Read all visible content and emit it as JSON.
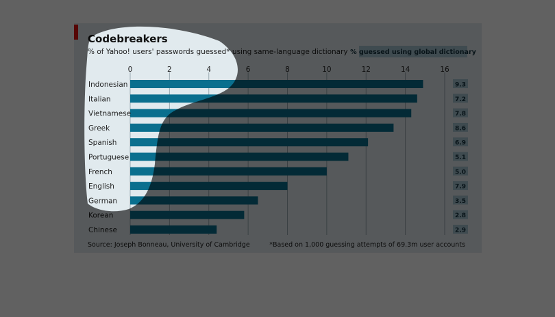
{
  "chart_data": {
    "type": "bar",
    "orientation": "horizontal",
    "title": "Codebreakers",
    "subtitle": "% of Yahoo! users' passwords guessed* using same-language dictionary",
    "categories": [
      "Indonesian",
      "Italian",
      "Vietnamese",
      "Greek",
      "Spanish",
      "Portuguese",
      "French",
      "English",
      "German",
      "Korean",
      "Chinese"
    ],
    "values": [
      14.9,
      14.6,
      14.3,
      13.4,
      12.1,
      11.1,
      10.0,
      8.0,
      6.5,
      5.8,
      4.4
    ],
    "xlim": [
      0,
      16
    ],
    "xticks": [
      0,
      2,
      4,
      6,
      8,
      10,
      12,
      14,
      16
    ],
    "grid": true,
    "side_column": {
      "header": "% guessed using global dictionary",
      "values": [
        "9.3",
        "7.2",
        "7.8",
        "8.6",
        "6.9",
        "5.1",
        "5.0",
        "7.9",
        "3.5",
        "2.8",
        "2.9"
      ]
    },
    "source": "Source: Joseph Bonneau, University of Cambridge",
    "footnote": "*Based on 1,000 guessing attempts of 69.3m user accounts"
  },
  "colors": {
    "bar": "#0a6f8e",
    "card_background": "#e1eaee",
    "accent": "#e3120b",
    "grid": "#9aa9b1",
    "side_box": "#a7c4d1",
    "dim": "#000000"
  }
}
